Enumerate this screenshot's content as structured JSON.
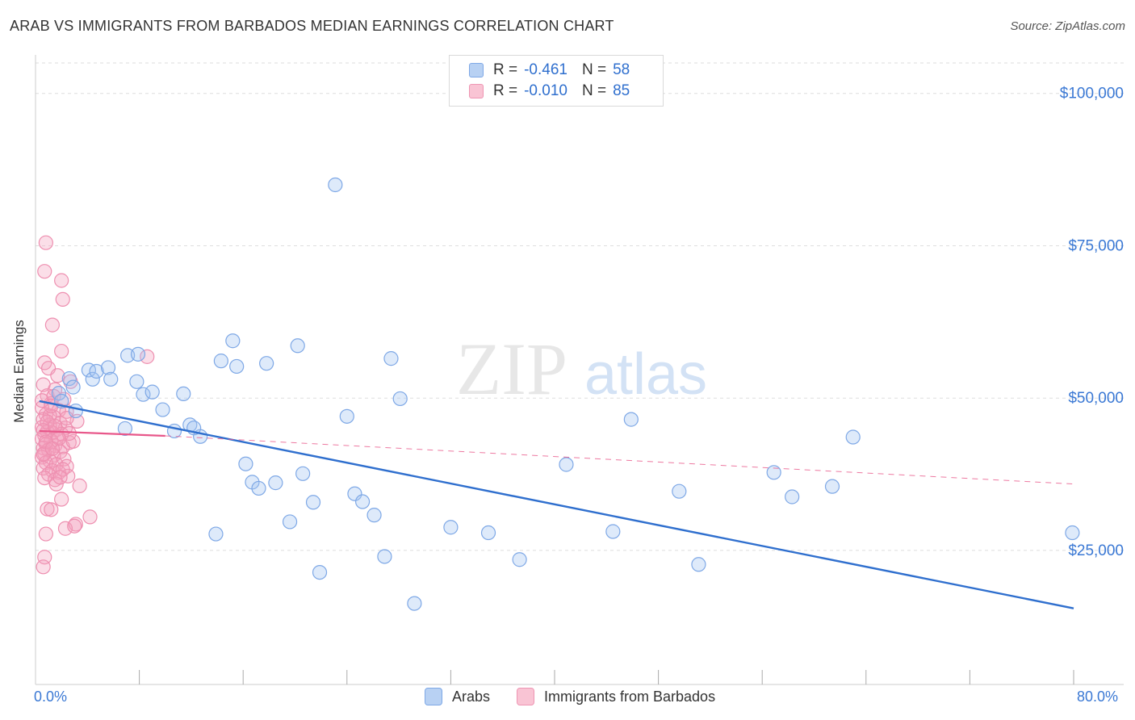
{
  "header": {
    "title": "ARAB VS IMMIGRANTS FROM BARBADOS MEDIAN EARNINGS CORRELATION CHART",
    "source": "Source: ZipAtlas.com"
  },
  "watermark": {
    "zip": "ZIP",
    "atlas": "atlas"
  },
  "legend": {
    "rows": [
      {
        "r_label": "R =",
        "r_value": "-0.461",
        "n_label": "N =",
        "n_value": "58",
        "fill": "#b8d1f3",
        "stroke": "#7ea8e6"
      },
      {
        "r_label": "R =",
        "r_value": "-0.010",
        "n_label": "N =",
        "n_value": "85",
        "fill": "#f9c4d4",
        "stroke": "#ee95b3"
      }
    ]
  },
  "bottom_legend": [
    {
      "label": "Arabs",
      "fill": "#b8d1f3",
      "stroke": "#7ea8e6"
    },
    {
      "label": "Immigrants from Barbados",
      "fill": "#f9c4d4",
      "stroke": "#ee95b3"
    }
  ],
  "colors": {
    "arabs_fill": "rgba(160,196,240,0.35)",
    "arabs_stroke": "#7ea8e6",
    "arabs_line": "#2f6fce",
    "barbados_fill": "rgba(244,160,190,0.35)",
    "barbados_stroke": "#ee8fb0",
    "barbados_line": "#e8578a",
    "tick_label": "#3a78d4",
    "grid": "#dddddd"
  },
  "chart_data": {
    "type": "scatter",
    "title": "ARAB VS IMMIGRANTS FROM BARBADOS MEDIAN EARNINGS CORRELATION CHART",
    "ylabel": "Median Earnings",
    "xlabel": "",
    "xlim": [
      0,
      80
    ],
    "ylim": [
      3000,
      105000
    ],
    "x_tick_labels": [
      "0.0%",
      "80.0%"
    ],
    "y_ticks": [
      {
        "value": 25000,
        "label": "$25,000"
      },
      {
        "value": 50000,
        "label": "$50,000"
      },
      {
        "value": 75000,
        "label": "$75,000"
      },
      {
        "value": 100000,
        "label": "$100,000"
      }
    ],
    "grid": true,
    "legend_position": "top-center",
    "series": [
      {
        "name": "Arabs",
        "r": -0.461,
        "n": 58,
        "trend": {
          "x0": 0.3,
          "y0": 49500,
          "x1": 80,
          "y1": 15500
        },
        "points": [
          [
            1.8,
            50800
          ],
          [
            2.0,
            49500
          ],
          [
            2.6,
            53200
          ],
          [
            2.9,
            51800
          ],
          [
            4.1,
            54600
          ],
          [
            4.4,
            53100
          ],
          [
            3.1,
            47900
          ],
          [
            4.7,
            54400
          ],
          [
            5.6,
            55000
          ],
          [
            5.8,
            53100
          ],
          [
            7.1,
            57000
          ],
          [
            7.8,
            52700
          ],
          [
            7.9,
            57200
          ],
          [
            6.9,
            45000
          ],
          [
            8.3,
            50600
          ],
          [
            9.0,
            51000
          ],
          [
            9.8,
            48100
          ],
          [
            10.7,
            44600
          ],
          [
            11.4,
            50700
          ],
          [
            11.9,
            45600
          ],
          [
            12.7,
            43700
          ],
          [
            13.9,
            27700
          ],
          [
            14.3,
            56100
          ],
          [
            15.2,
            59400
          ],
          [
            15.5,
            55200
          ],
          [
            16.2,
            39200
          ],
          [
            16.7,
            36200
          ],
          [
            17.2,
            35200
          ],
          [
            17.8,
            55700
          ],
          [
            18.5,
            36100
          ],
          [
            19.6,
            29700
          ],
          [
            20.2,
            58600
          ],
          [
            20.6,
            37600
          ],
          [
            21.4,
            32900
          ],
          [
            21.9,
            21400
          ],
          [
            23.1,
            85000
          ],
          [
            24.0,
            47000
          ],
          [
            24.6,
            34300
          ],
          [
            25.2,
            33000
          ],
          [
            26.1,
            30800
          ],
          [
            26.9,
            24000
          ],
          [
            27.4,
            56500
          ],
          [
            28.1,
            49900
          ],
          [
            29.2,
            16300
          ],
          [
            32.0,
            28800
          ],
          [
            34.9,
            27900
          ],
          [
            37.3,
            23500
          ],
          [
            40.9,
            39100
          ],
          [
            44.5,
            28100
          ],
          [
            45.9,
            46500
          ],
          [
            49.6,
            34700
          ],
          [
            51.1,
            22700
          ],
          [
            56.9,
            37800
          ],
          [
            58.3,
            33800
          ],
          [
            61.4,
            35500
          ],
          [
            63.0,
            43600
          ],
          [
            79.9,
            27900
          ],
          [
            12.2,
            45100
          ]
        ]
      },
      {
        "name": "Immigrants from Barbados",
        "r": -0.01,
        "n": 85,
        "trend_solid": {
          "x0": 0.3,
          "y0": 44600,
          "x1": 10,
          "y1": 43800
        },
        "trend_dashed": {
          "x0": 10,
          "y0": 43800,
          "x1": 80,
          "y1": 35900
        },
        "points": [
          [
            0.8,
            75500
          ],
          [
            0.7,
            70800
          ],
          [
            2.0,
            69300
          ],
          [
            2.1,
            66200
          ],
          [
            1.3,
            62000
          ],
          [
            2.0,
            57700
          ],
          [
            8.6,
            56800
          ],
          [
            0.7,
            55800
          ],
          [
            1.0,
            54900
          ],
          [
            1.7,
            53700
          ],
          [
            0.6,
            52200
          ],
          [
            2.7,
            52700
          ],
          [
            1.5,
            51400
          ],
          [
            0.9,
            50400
          ],
          [
            2.2,
            49800
          ],
          [
            1.2,
            49100
          ],
          [
            0.5,
            48400
          ],
          [
            1.8,
            48000
          ],
          [
            2.4,
            47800
          ],
          [
            0.8,
            47300
          ],
          [
            1.4,
            46900
          ],
          [
            3.2,
            46200
          ],
          [
            0.6,
            46500
          ],
          [
            1.9,
            45900
          ],
          [
            1.1,
            45600
          ],
          [
            0.5,
            45200
          ],
          [
            2.3,
            45100
          ],
          [
            1.6,
            44800
          ],
          [
            0.9,
            44500
          ],
          [
            1.3,
            44300
          ],
          [
            2.0,
            44100
          ],
          [
            0.7,
            43900
          ],
          [
            1.7,
            43600
          ],
          [
            0.5,
            43300
          ],
          [
            1.2,
            43000
          ],
          [
            2.6,
            42700
          ],
          [
            0.8,
            42400
          ],
          [
            1.5,
            42200
          ],
          [
            2.1,
            42000
          ],
          [
            0.6,
            41800
          ],
          [
            1.0,
            41500
          ],
          [
            1.9,
            41200
          ],
          [
            0.7,
            40900
          ],
          [
            1.4,
            40600
          ],
          [
            0.5,
            40300
          ],
          [
            2.2,
            40000
          ],
          [
            1.1,
            39700
          ],
          [
            0.8,
            39400
          ],
          [
            1.6,
            39100
          ],
          [
            2.4,
            38800
          ],
          [
            0.6,
            38500
          ],
          [
            1.3,
            38100
          ],
          [
            1.8,
            37800
          ],
          [
            1.0,
            37500
          ],
          [
            2.5,
            37200
          ],
          [
            0.7,
            36900
          ],
          [
            1.5,
            36600
          ],
          [
            3.4,
            35600
          ],
          [
            2.0,
            33400
          ],
          [
            0.9,
            31800
          ],
          [
            1.2,
            31700
          ],
          [
            4.2,
            30500
          ],
          [
            3.1,
            29300
          ],
          [
            2.3,
            28600
          ],
          [
            0.8,
            27700
          ],
          [
            1.6,
            35900
          ],
          [
            0.6,
            40800
          ],
          [
            2.9,
            42900
          ],
          [
            1.1,
            47100
          ],
          [
            0.5,
            49600
          ],
          [
            1.4,
            50300
          ],
          [
            2.6,
            44200
          ],
          [
            0.9,
            46100
          ],
          [
            1.8,
            43400
          ],
          [
            0.6,
            44700
          ],
          [
            1.2,
            48700
          ],
          [
            2.1,
            38300
          ],
          [
            0.8,
            42800
          ],
          [
            1.5,
            45400
          ],
          [
            3.0,
            29000
          ],
          [
            0.7,
            23900
          ],
          [
            0.6,
            22300
          ],
          [
            1.9,
            37000
          ],
          [
            1.3,
            41700
          ],
          [
            2.4,
            46700
          ]
        ]
      }
    ]
  }
}
